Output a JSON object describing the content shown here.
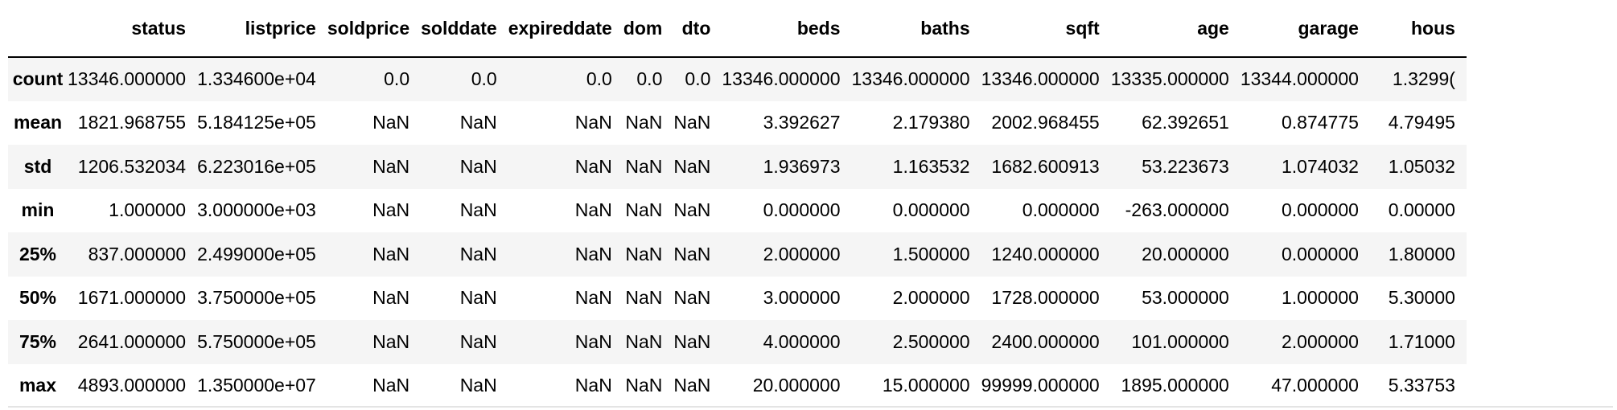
{
  "table": {
    "index_header": "",
    "columns": [
      "status",
      "listprice",
      "soldprice",
      "solddate",
      "expireddate",
      "dom",
      "dto",
      "beds",
      "baths",
      "sqft",
      "age",
      "garage",
      "hous"
    ],
    "rows": [
      {
        "label": "count",
        "cells": [
          "13346.000000",
          "1.334600e+04",
          "0.0",
          "0.0",
          "0.0",
          "0.0",
          "0.0",
          "13346.000000",
          "13346.000000",
          "13346.000000",
          "13335.000000",
          "13344.000000",
          "1.3299("
        ]
      },
      {
        "label": "mean",
        "cells": [
          "1821.968755",
          "5.184125e+05",
          "NaN",
          "NaN",
          "NaN",
          "NaN",
          "NaN",
          "3.392627",
          "2.179380",
          "2002.968455",
          "62.392651",
          "0.874775",
          "4.79495"
        ]
      },
      {
        "label": "std",
        "cells": [
          "1206.532034",
          "6.223016e+05",
          "NaN",
          "NaN",
          "NaN",
          "NaN",
          "NaN",
          "1.936973",
          "1.163532",
          "1682.600913",
          "53.223673",
          "1.074032",
          "1.05032"
        ]
      },
      {
        "label": "min",
        "cells": [
          "1.000000",
          "3.000000e+03",
          "NaN",
          "NaN",
          "NaN",
          "NaN",
          "NaN",
          "0.000000",
          "0.000000",
          "0.000000",
          "-263.000000",
          "0.000000",
          "0.00000"
        ]
      },
      {
        "label": "25%",
        "cells": [
          "837.000000",
          "2.499000e+05",
          "NaN",
          "NaN",
          "NaN",
          "NaN",
          "NaN",
          "2.000000",
          "1.500000",
          "1240.000000",
          "20.000000",
          "0.000000",
          "1.80000"
        ]
      },
      {
        "label": "50%",
        "cells": [
          "1671.000000",
          "3.750000e+05",
          "NaN",
          "NaN",
          "NaN",
          "NaN",
          "NaN",
          "3.000000",
          "2.000000",
          "1728.000000",
          "53.000000",
          "1.000000",
          "5.30000"
        ]
      },
      {
        "label": "75%",
        "cells": [
          "2641.000000",
          "5.750000e+05",
          "NaN",
          "NaN",
          "NaN",
          "NaN",
          "NaN",
          "4.000000",
          "2.500000",
          "2400.000000",
          "101.000000",
          "2.000000",
          "1.71000"
        ]
      },
      {
        "label": "max",
        "cells": [
          "4893.000000",
          "1.350000e+07",
          "NaN",
          "NaN",
          "NaN",
          "NaN",
          "NaN",
          "20.000000",
          "15.000000",
          "99999.000000",
          "1895.000000",
          "47.000000",
          "5.33753"
        ]
      }
    ]
  }
}
